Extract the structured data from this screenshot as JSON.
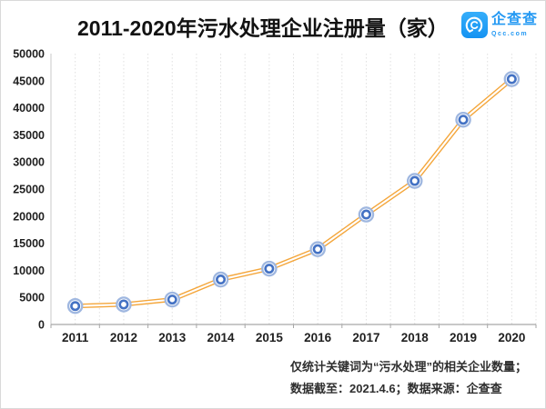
{
  "title": "2011-2020年污水处理企业注册量（家）",
  "logo": {
    "name": "企查查",
    "domain": "Qcc.com",
    "brand_color": "#2499f3"
  },
  "footnote": {
    "line1": "仅统计关键词为“污水处理”的相关企业数量；",
    "line2": "数据截至：2021.4.6；数据来源：企查查"
  },
  "chart_data": {
    "type": "line",
    "title": "2011-2020年污水处理企业注册量（家）",
    "categories": [
      "2011",
      "2012",
      "2013",
      "2014",
      "2015",
      "2016",
      "2017",
      "2018",
      "2019",
      "2020"
    ],
    "values": [
      3400,
      3700,
      4600,
      8300,
      10300,
      13900,
      20300,
      26500,
      37800,
      45300
    ],
    "xlabel": "",
    "ylabel": "",
    "ylim": [
      0,
      50000
    ],
    "ytick_step": 5000,
    "grid": "vertical-dotted-minor",
    "legend": "none",
    "line_color": "#F4A63B",
    "line_style": "double-stroke",
    "marker": "double-circle",
    "marker_inner_ring_color": "#4472C4",
    "marker_outer_ring_color": "#9FB7E0",
    "axis_color": "#a6a6a6",
    "gridline_color": "#e0e0e0",
    "tick_label_color": "#1f1f1f"
  }
}
